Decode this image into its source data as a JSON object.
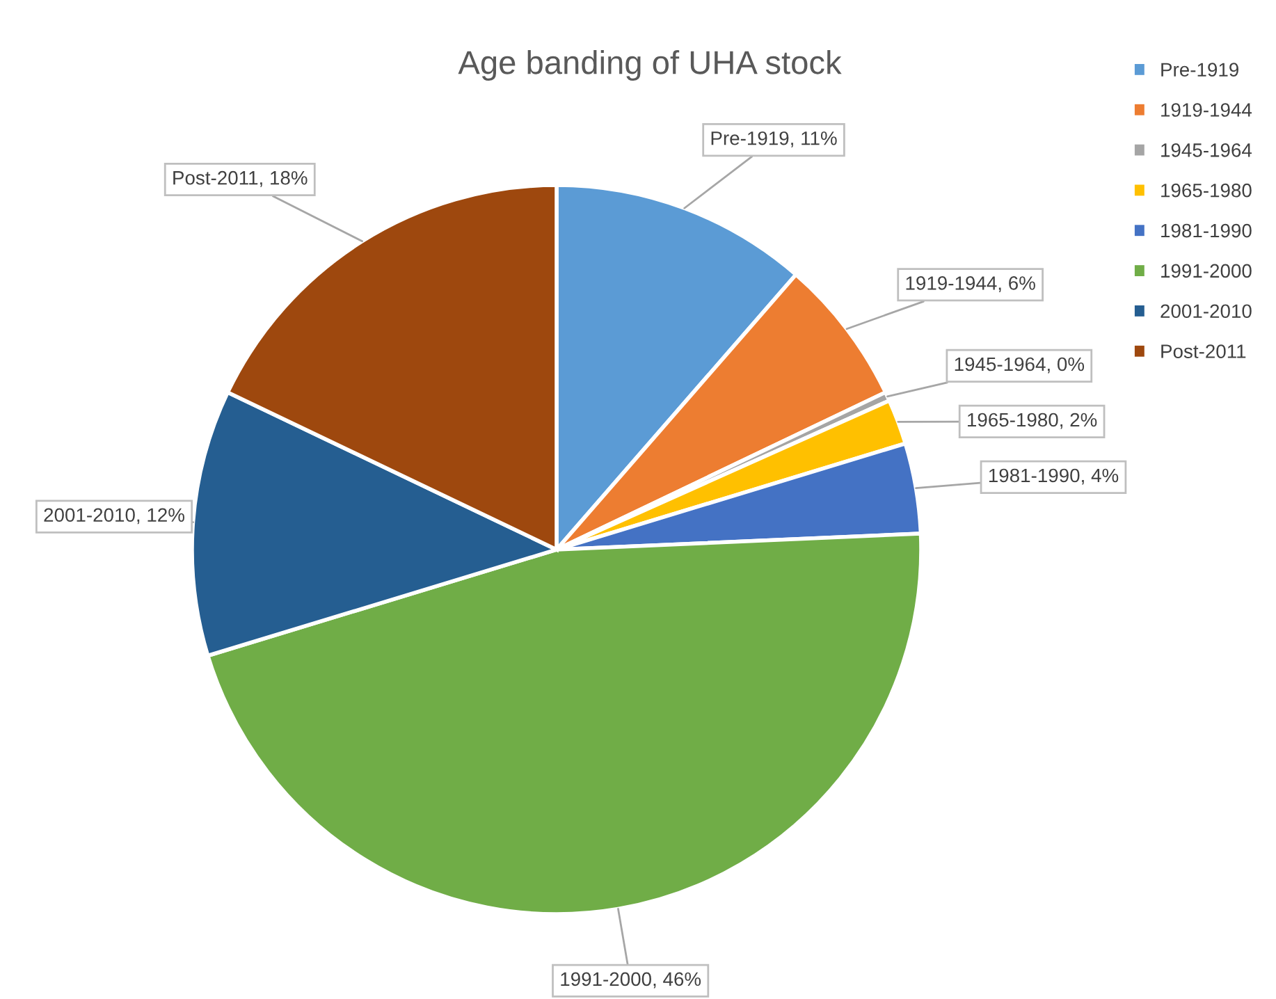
{
  "chart_data": {
    "type": "pie",
    "title": "Age banding of UHA stock",
    "categories": [
      "Pre-1919",
      "1919-1944",
      "1945-1964",
      "1965-1980",
      "1981-1990",
      "1991-2000",
      "2001-2010",
      "Post-2011"
    ],
    "values": [
      11.4,
      6.5,
      0.4,
      2.0,
      4.0,
      46.0,
      11.8,
      17.9
    ],
    "value_labels": [
      "Pre-1919, 11%",
      "1919-1944, 6%",
      "1945-1964, 0%",
      "1965-1980, 2%",
      "1981-1990, 4%",
      "1991-2000, 46%",
      "2001-2010, 12%",
      "Post-2011, 18%"
    ],
    "colors": [
      "#5b9bd5",
      "#ed7d31",
      "#a5a5a5",
      "#ffc000",
      "#4472c4",
      "#70ad47",
      "#255e91",
      "#9e480e"
    ],
    "legend": "top right"
  }
}
